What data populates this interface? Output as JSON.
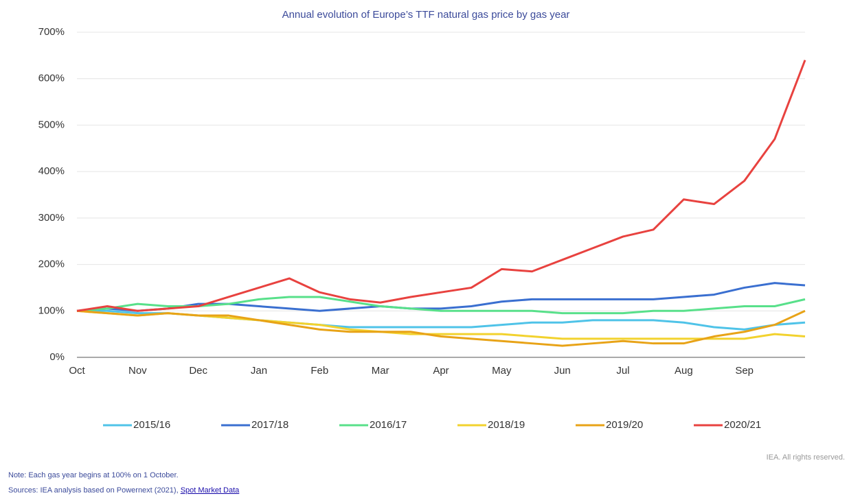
{
  "chart_data": {
    "type": "line",
    "title": "Annual evolution of Europe’s TTF natural gas price by gas year",
    "categories": [
      "Oct",
      null,
      "Nov",
      null,
      "Dec",
      null,
      "Jan",
      null,
      "Feb",
      null,
      "Mar",
      null,
      "Apr",
      null,
      "May",
      null,
      "Jun",
      null,
      "Jul",
      null,
      "Aug",
      null,
      "Sep",
      null,
      null
    ],
    "series": [
      {
        "name": "2015/16",
        "color": "#4fc3e8",
        "values": [
          100,
          100,
          95,
          95,
          90,
          85,
          80,
          75,
          70,
          65,
          65,
          65,
          65,
          65,
          70,
          75,
          75,
          80,
          80,
          80,
          75,
          65,
          60,
          70,
          75
        ]
      },
      {
        "name": "2017/18",
        "color": "#3a6fd0",
        "values": [
          100,
          105,
          100,
          105,
          115,
          115,
          110,
          105,
          100,
          105,
          110,
          105,
          105,
          110,
          120,
          125,
          125,
          125,
          125,
          125,
          130,
          135,
          150,
          160,
          155
        ]
      },
      {
        "name": "2016/17",
        "color": "#58e08a",
        "values": [
          100,
          105,
          115,
          110,
          110,
          115,
          125,
          130,
          130,
          120,
          110,
          105,
          100,
          100,
          100,
          100,
          95,
          95,
          95,
          100,
          100,
          105,
          110,
          110,
          125
        ]
      },
      {
        "name": "2018/19",
        "color": "#f2d22e",
        "values": [
          100,
          95,
          90,
          95,
          90,
          85,
          80,
          75,
          70,
          60,
          55,
          50,
          50,
          50,
          50,
          45,
          40,
          40,
          40,
          40,
          40,
          40,
          40,
          50,
          45
        ]
      },
      {
        "name": "2019/20",
        "color": "#e8a317",
        "values": [
          100,
          95,
          90,
          95,
          90,
          90,
          80,
          70,
          60,
          55,
          55,
          55,
          45,
          40,
          35,
          30,
          25,
          30,
          35,
          30,
          30,
          45,
          55,
          70,
          100
        ]
      },
      {
        "name": "2020/21",
        "color": "#e8423f",
        "values": [
          100,
          110,
          100,
          105,
          110,
          130,
          150,
          170,
          140,
          125,
          118,
          130,
          140,
          150,
          190,
          185,
          210,
          235,
          260,
          275,
          340,
          330,
          380,
          470,
          640
        ]
      }
    ],
    "ylim": [
      0,
      700
    ],
    "yticks": [
      {
        "value": 0,
        "label": "0%"
      },
      {
        "value": 100,
        "label": "100%"
      },
      {
        "value": 200,
        "label": "200%"
      },
      {
        "value": 300,
        "label": "300%"
      },
      {
        "value": 400,
        "label": "400%"
      },
      {
        "value": 500,
        "label": "500%"
      },
      {
        "value": 600,
        "label": "600%"
      },
      {
        "value": 700,
        "label": "700%"
      }
    ],
    "grid": true
  },
  "footer": {
    "rights": "IEA. All rights reserved.",
    "note": "Note: Each gas year begins at 100% on 1 October.",
    "sources": "Sources: IEA analysis based on Powernext (2021),",
    "link": "Spot Market Data"
  }
}
